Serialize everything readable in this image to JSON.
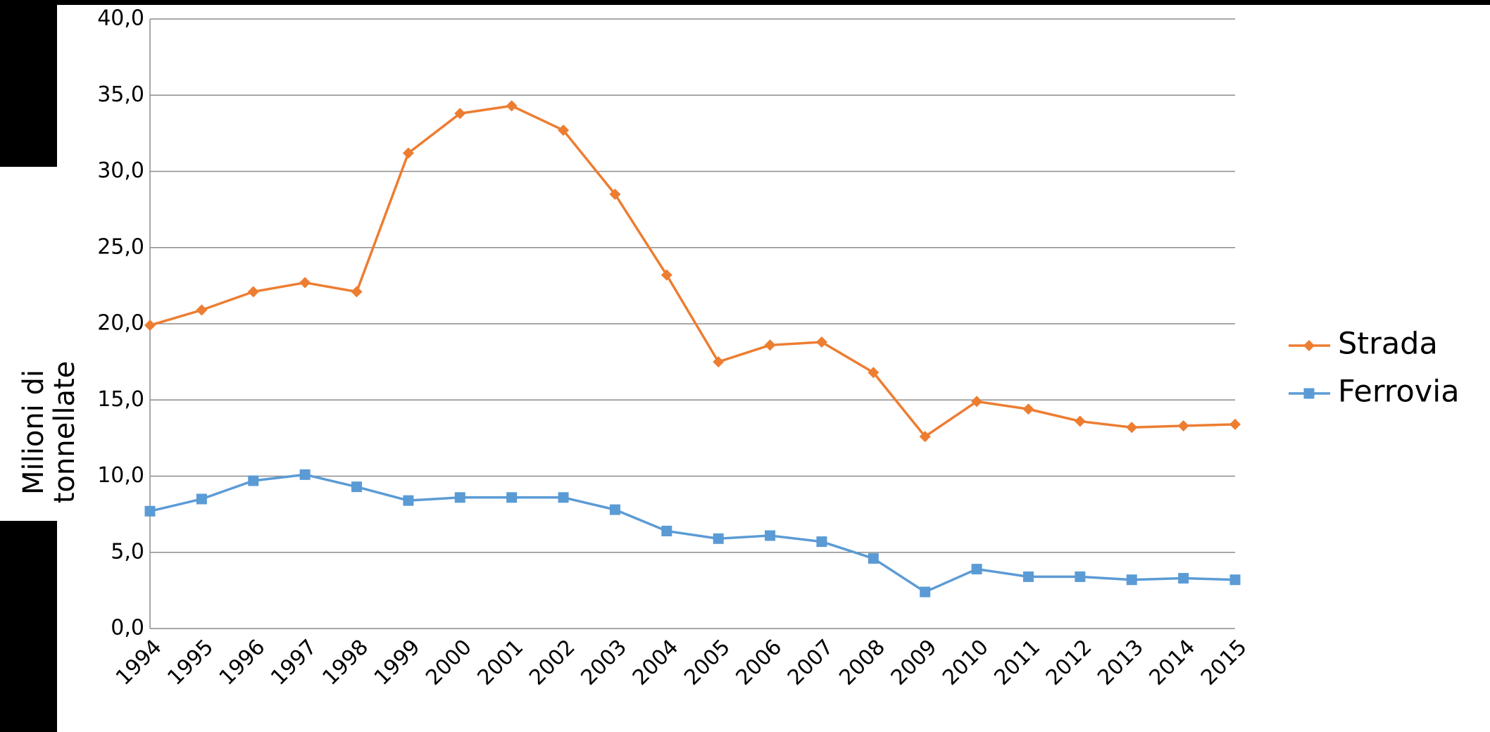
{
  "chart_data": {
    "type": "line",
    "y_label": "Milioni di tonnellate",
    "categories": [
      "1994",
      "1995",
      "1996",
      "1997",
      "1998",
      "1999",
      "2000",
      "2001",
      "2002",
      "2003",
      "2004",
      "2005",
      "2006",
      "2007",
      "2008",
      "2009",
      "2010",
      "2011",
      "2012",
      "2013",
      "2014",
      "2015"
    ],
    "series": [
      {
        "name": "Strada",
        "color": "#ed7d31",
        "marker": "diamond",
        "values": [
          19.9,
          20.9,
          22.1,
          22.7,
          22.1,
          31.2,
          33.8,
          34.3,
          32.7,
          28.5,
          23.2,
          17.5,
          18.6,
          18.8,
          16.8,
          12.6,
          14.9,
          14.4,
          13.6,
          13.2,
          13.3,
          13.4
        ]
      },
      {
        "name": "Ferrovia",
        "color": "#5b9bd5",
        "marker": "square",
        "values": [
          7.7,
          8.5,
          9.7,
          10.1,
          9.3,
          8.4,
          8.6,
          8.6,
          8.6,
          7.8,
          6.4,
          5.9,
          6.1,
          5.7,
          4.6,
          2.4,
          3.9,
          3.4,
          3.4,
          3.2,
          3.3,
          3.2
        ]
      }
    ],
    "ylim": [
      0,
      40
    ],
    "yticks": [
      {
        "value": 0,
        "label": "0,0"
      },
      {
        "value": 5,
        "label": "5,0"
      },
      {
        "value": 10,
        "label": "10,0"
      },
      {
        "value": 15,
        "label": "15,0"
      },
      {
        "value": 20,
        "label": "20,0"
      },
      {
        "value": 25,
        "label": "25,0"
      },
      {
        "value": 30,
        "label": "30,0"
      },
      {
        "value": 35,
        "label": "35,0"
      },
      {
        "value": 40,
        "label": "40,0"
      }
    ],
    "grid": true,
    "legend": "right"
  }
}
